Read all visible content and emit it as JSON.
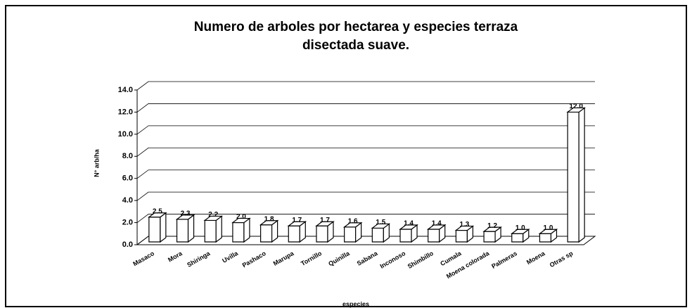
{
  "chart_data": {
    "type": "bar3d",
    "title": [
      "Numero de arboles por hectarea y especies terraza",
      "disectada suave."
    ],
    "x_label": "especies",
    "y_label": "N° arb/ha",
    "categories": [
      "Masaco",
      "Mora",
      "Shiringa",
      "Uvilla",
      "Pashaco",
      "Marupa",
      "Tornillo",
      "Quinilla",
      "Sabana",
      "Inconoso",
      "Shimbillo",
      "Cumala",
      "Moena colorada",
      "Palmeras",
      "Moena",
      "Otras sp"
    ],
    "values": [
      2.5,
      2.3,
      2.2,
      2.0,
      1.8,
      1.7,
      1.7,
      1.6,
      1.5,
      1.4,
      1.4,
      1.3,
      1.2,
      1.0,
      1.0,
      12.0
    ],
    "value_labels": [
      "2.5",
      "2.3",
      "2.2",
      "2.0",
      "1.8",
      "1.7",
      "1.7",
      "1.6",
      "1.5",
      "1.4",
      "1.4",
      "1.3",
      "1.2",
      "1.0",
      "1.0",
      "12.0"
    ],
    "color": "#ffffff",
    "ylim": [
      0,
      14
    ],
    "yticks": [
      {
        "value": 0,
        "label": "0.0"
      },
      {
        "value": 2,
        "label": "2.0"
      },
      {
        "value": 4,
        "label": "4.0"
      },
      {
        "value": 6,
        "label": "6.0"
      },
      {
        "value": 8,
        "label": "8.0"
      },
      {
        "value": 10,
        "label": "10.0"
      },
      {
        "value": 12,
        "label": "12.0"
      },
      {
        "value": 14,
        "label": "14.0"
      }
    ],
    "grid": true
  }
}
